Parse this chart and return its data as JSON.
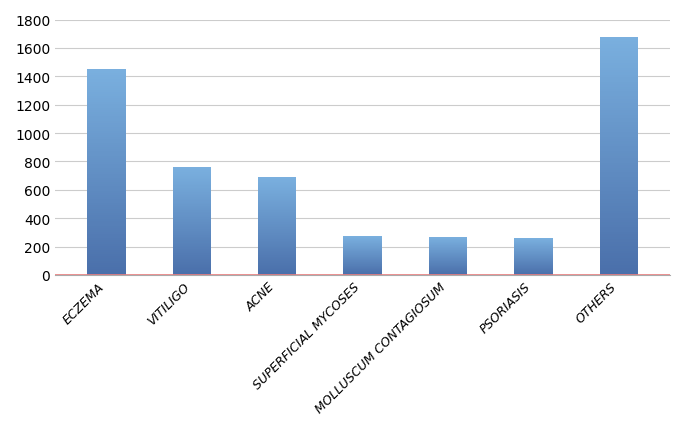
{
  "categories": [
    "ECZEMA",
    "VITILIGO",
    "ACNE",
    "SUPERFICIAL MYCOSES",
    "MOLLUSCUM CONTAGIOSUM",
    "PSORIASIS",
    "OTHERS"
  ],
  "values": [
    1450,
    760,
    690,
    275,
    270,
    260,
    1680
  ],
  "bar_color_light": "#7ab0df",
  "bar_color_dark": "#4a6faa",
  "baseline_color": "#e88080",
  "ylim": [
    0,
    1800
  ],
  "yticks": [
    0,
    200,
    400,
    600,
    800,
    1000,
    1200,
    1400,
    1600,
    1800
  ],
  "background_color": "#ffffff",
  "grid_color": "#cccccc",
  "xlabel_fontsize": 9,
  "ylabel_fontsize": 10,
  "tick_label_rotation": 45,
  "figure_width": 6.85,
  "figure_height": 4.31,
  "dpi": 100,
  "bar_width": 0.45
}
